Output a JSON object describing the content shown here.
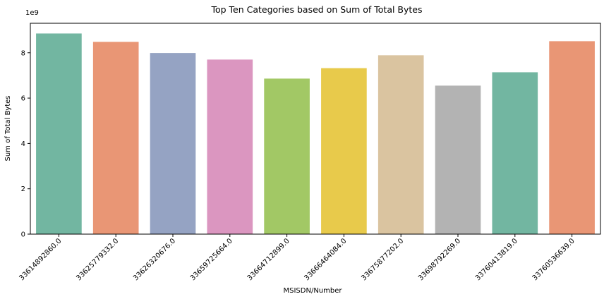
{
  "chart_data": {
    "type": "bar",
    "title": "Top Ten Categories based on Sum of Total Bytes",
    "xlabel": "MSISDN/Number",
    "ylabel": "Sum of Total Bytes",
    "offset_label": "1e9",
    "categories": [
      "33614892860.0",
      "33625779332.0",
      "33626320676.0",
      "33659725664.0",
      "33664712899.0",
      "33666464084.0",
      "33675877202.0",
      "33698792269.0",
      "33760413819.0",
      "33760536639.0"
    ],
    "values": [
      8850000000.0,
      8480000000.0,
      7990000000.0,
      7700000000.0,
      6860000000.0,
      7320000000.0,
      7890000000.0,
      6550000000.0,
      7140000000.0,
      8510000000.0
    ],
    "colors": [
      "#72b6a1",
      "#e99675",
      "#95a3c3",
      "#db96c0",
      "#a2c865",
      "#e8ca4b",
      "#dac4a0",
      "#b3b3b3",
      "#72b6a1",
      "#e99675"
    ],
    "yticks": [
      0,
      2,
      4,
      6,
      8
    ],
    "yticklabels": [
      "0",
      "2",
      "4",
      "6",
      "8"
    ],
    "ylim": [
      0,
      9300000000.0
    ],
    "grid": false,
    "legend": "none"
  }
}
